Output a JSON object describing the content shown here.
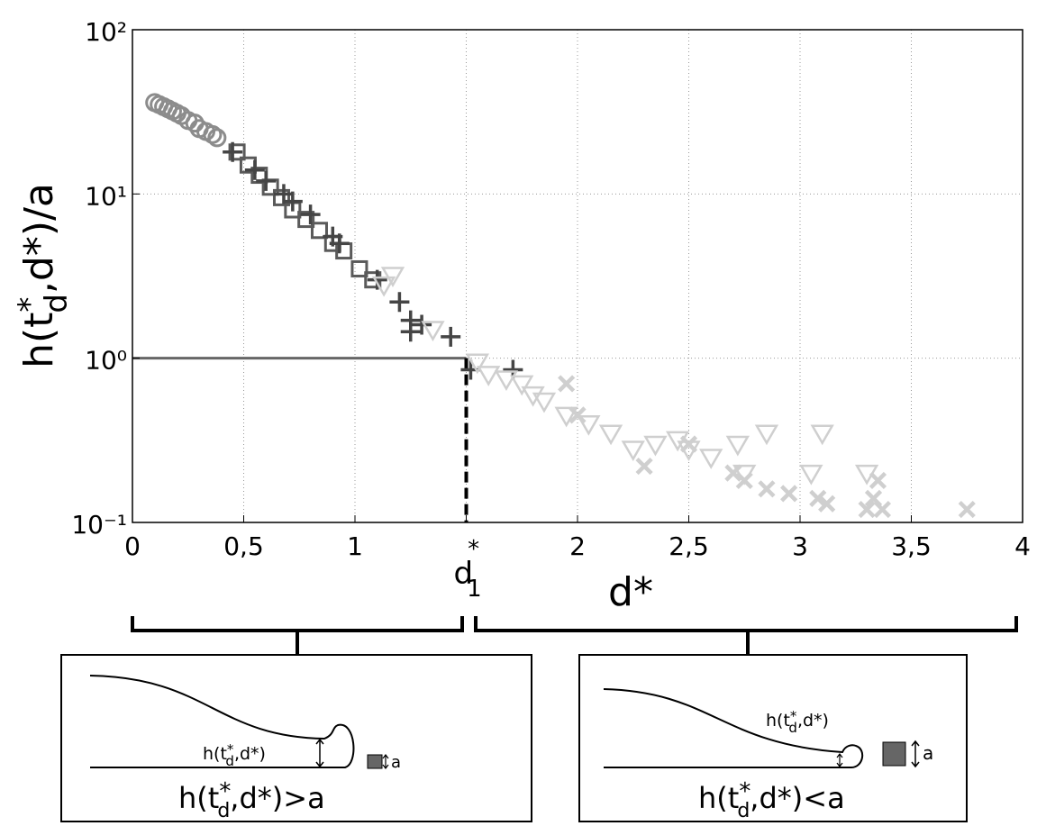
{
  "chart_data": {
    "type": "scatter",
    "y_label": {
      "base": "h(t",
      "sup": "*",
      "sub": "d",
      "rest": ",d*)/a"
    },
    "x_label": "d*",
    "log_y": true,
    "grid": true,
    "xlim": [
      0,
      4
    ],
    "ylim": [
      0.1,
      100
    ],
    "xticks": [
      0,
      {
        "value": 0.5,
        "label": "0,5"
      },
      1,
      {
        "value": 1.5,
        "label": ""
      },
      2,
      {
        "value": 2.5,
        "label": "2,5"
      },
      3,
      {
        "value": 3.5,
        "label": "3,5"
      },
      4
    ],
    "yticks": [
      {
        "value": 0.1,
        "label": "10⁻¹"
      },
      {
        "value": 1,
        "label": "10⁰"
      },
      {
        "value": 10,
        "label": "10¹"
      },
      {
        "value": 100,
        "label": "10²"
      }
    ],
    "threshold": {
      "x": 1.5,
      "y": 1,
      "line_color": "#666666",
      "label": {
        "base": "d",
        "sup": "*",
        "sub": "1"
      }
    },
    "series": [
      {
        "marker": "circle",
        "color": "#8c8c8c",
        "x": [
          0.1,
          0.12,
          0.14,
          0.16,
          0.18,
          0.2,
          0.22,
          0.25,
          0.28,
          0.3,
          0.33,
          0.36,
          0.38
        ],
        "values": [
          36,
          35,
          34,
          33,
          32,
          31,
          30,
          28,
          27,
          25,
          24,
          23,
          22
        ]
      },
      {
        "marker": "square",
        "color": "#5a5a5a",
        "x": [
          0.47,
          0.52,
          0.57,
          0.62,
          0.67,
          0.72,
          0.78,
          0.84,
          0.9,
          0.95,
          1.02,
          1.08
        ],
        "values": [
          18,
          15,
          13,
          11,
          9.5,
          8,
          7,
          6,
          5,
          4.5,
          3.5,
          3
        ]
      },
      {
        "marker": "plus",
        "color": "#454545",
        "x": [
          0.45,
          0.55,
          0.6,
          0.68,
          0.72,
          0.8,
          0.9,
          0.93,
          1.1,
          1.2,
          1.25,
          1.25,
          1.3,
          1.43,
          1.52,
          1.71
        ],
        "values": [
          18,
          14,
          12,
          10,
          9,
          7.5,
          5.5,
          5,
          3,
          2.2,
          1.7,
          1.45,
          1.6,
          1.35,
          0.85,
          0.85
        ]
      },
      {
        "marker": "triangle-down",
        "color": "#cfcfcf",
        "x": [
          1.13,
          1.17,
          1.35,
          1.55,
          1.6,
          1.68,
          1.75,
          1.8,
          1.85,
          1.95,
          2.05,
          2.15,
          2.25,
          2.35,
          2.45,
          2.5,
          2.6,
          2.72,
          2.75,
          2.85,
          3.05,
          3.1,
          3.3
        ],
        "values": [
          2.8,
          3.2,
          1.5,
          0.95,
          0.8,
          0.75,
          0.7,
          0.6,
          0.55,
          0.45,
          0.4,
          0.35,
          0.28,
          0.3,
          0.32,
          0.28,
          0.25,
          0.3,
          0.2,
          0.35,
          0.2,
          0.35,
          0.2
        ]
      },
      {
        "marker": "x",
        "color": "#cfcfcf",
        "x": [
          1.95,
          2.0,
          2.3,
          2.5,
          2.7,
          2.75,
          2.85,
          2.95,
          3.08,
          3.12,
          3.3,
          3.33,
          3.35,
          3.37,
          3.75
        ],
        "values": [
          0.7,
          0.45,
          0.22,
          0.3,
          0.2,
          0.18,
          0.16,
          0.15,
          0.14,
          0.13,
          0.12,
          0.14,
          0.18,
          0.12,
          0.12
        ]
      }
    ]
  },
  "panels": [
    {
      "inner": {
        "base": "h(t",
        "sup": "*",
        "sub": "d",
        "rest": ",d*)"
      },
      "size_label": "a",
      "formula": {
        "base": "h(t",
        "sup": "*",
        "sub": "d",
        "rest": ",d*)>a"
      }
    },
    {
      "inner": {
        "base": "h(t",
        "sup": "*",
        "sub": "d",
        "rest": ",d*)"
      },
      "size_label": "a",
      "formula": {
        "base": "h(t",
        "sup": "*",
        "sub": "d",
        "rest": ",d*)<a"
      }
    }
  ]
}
